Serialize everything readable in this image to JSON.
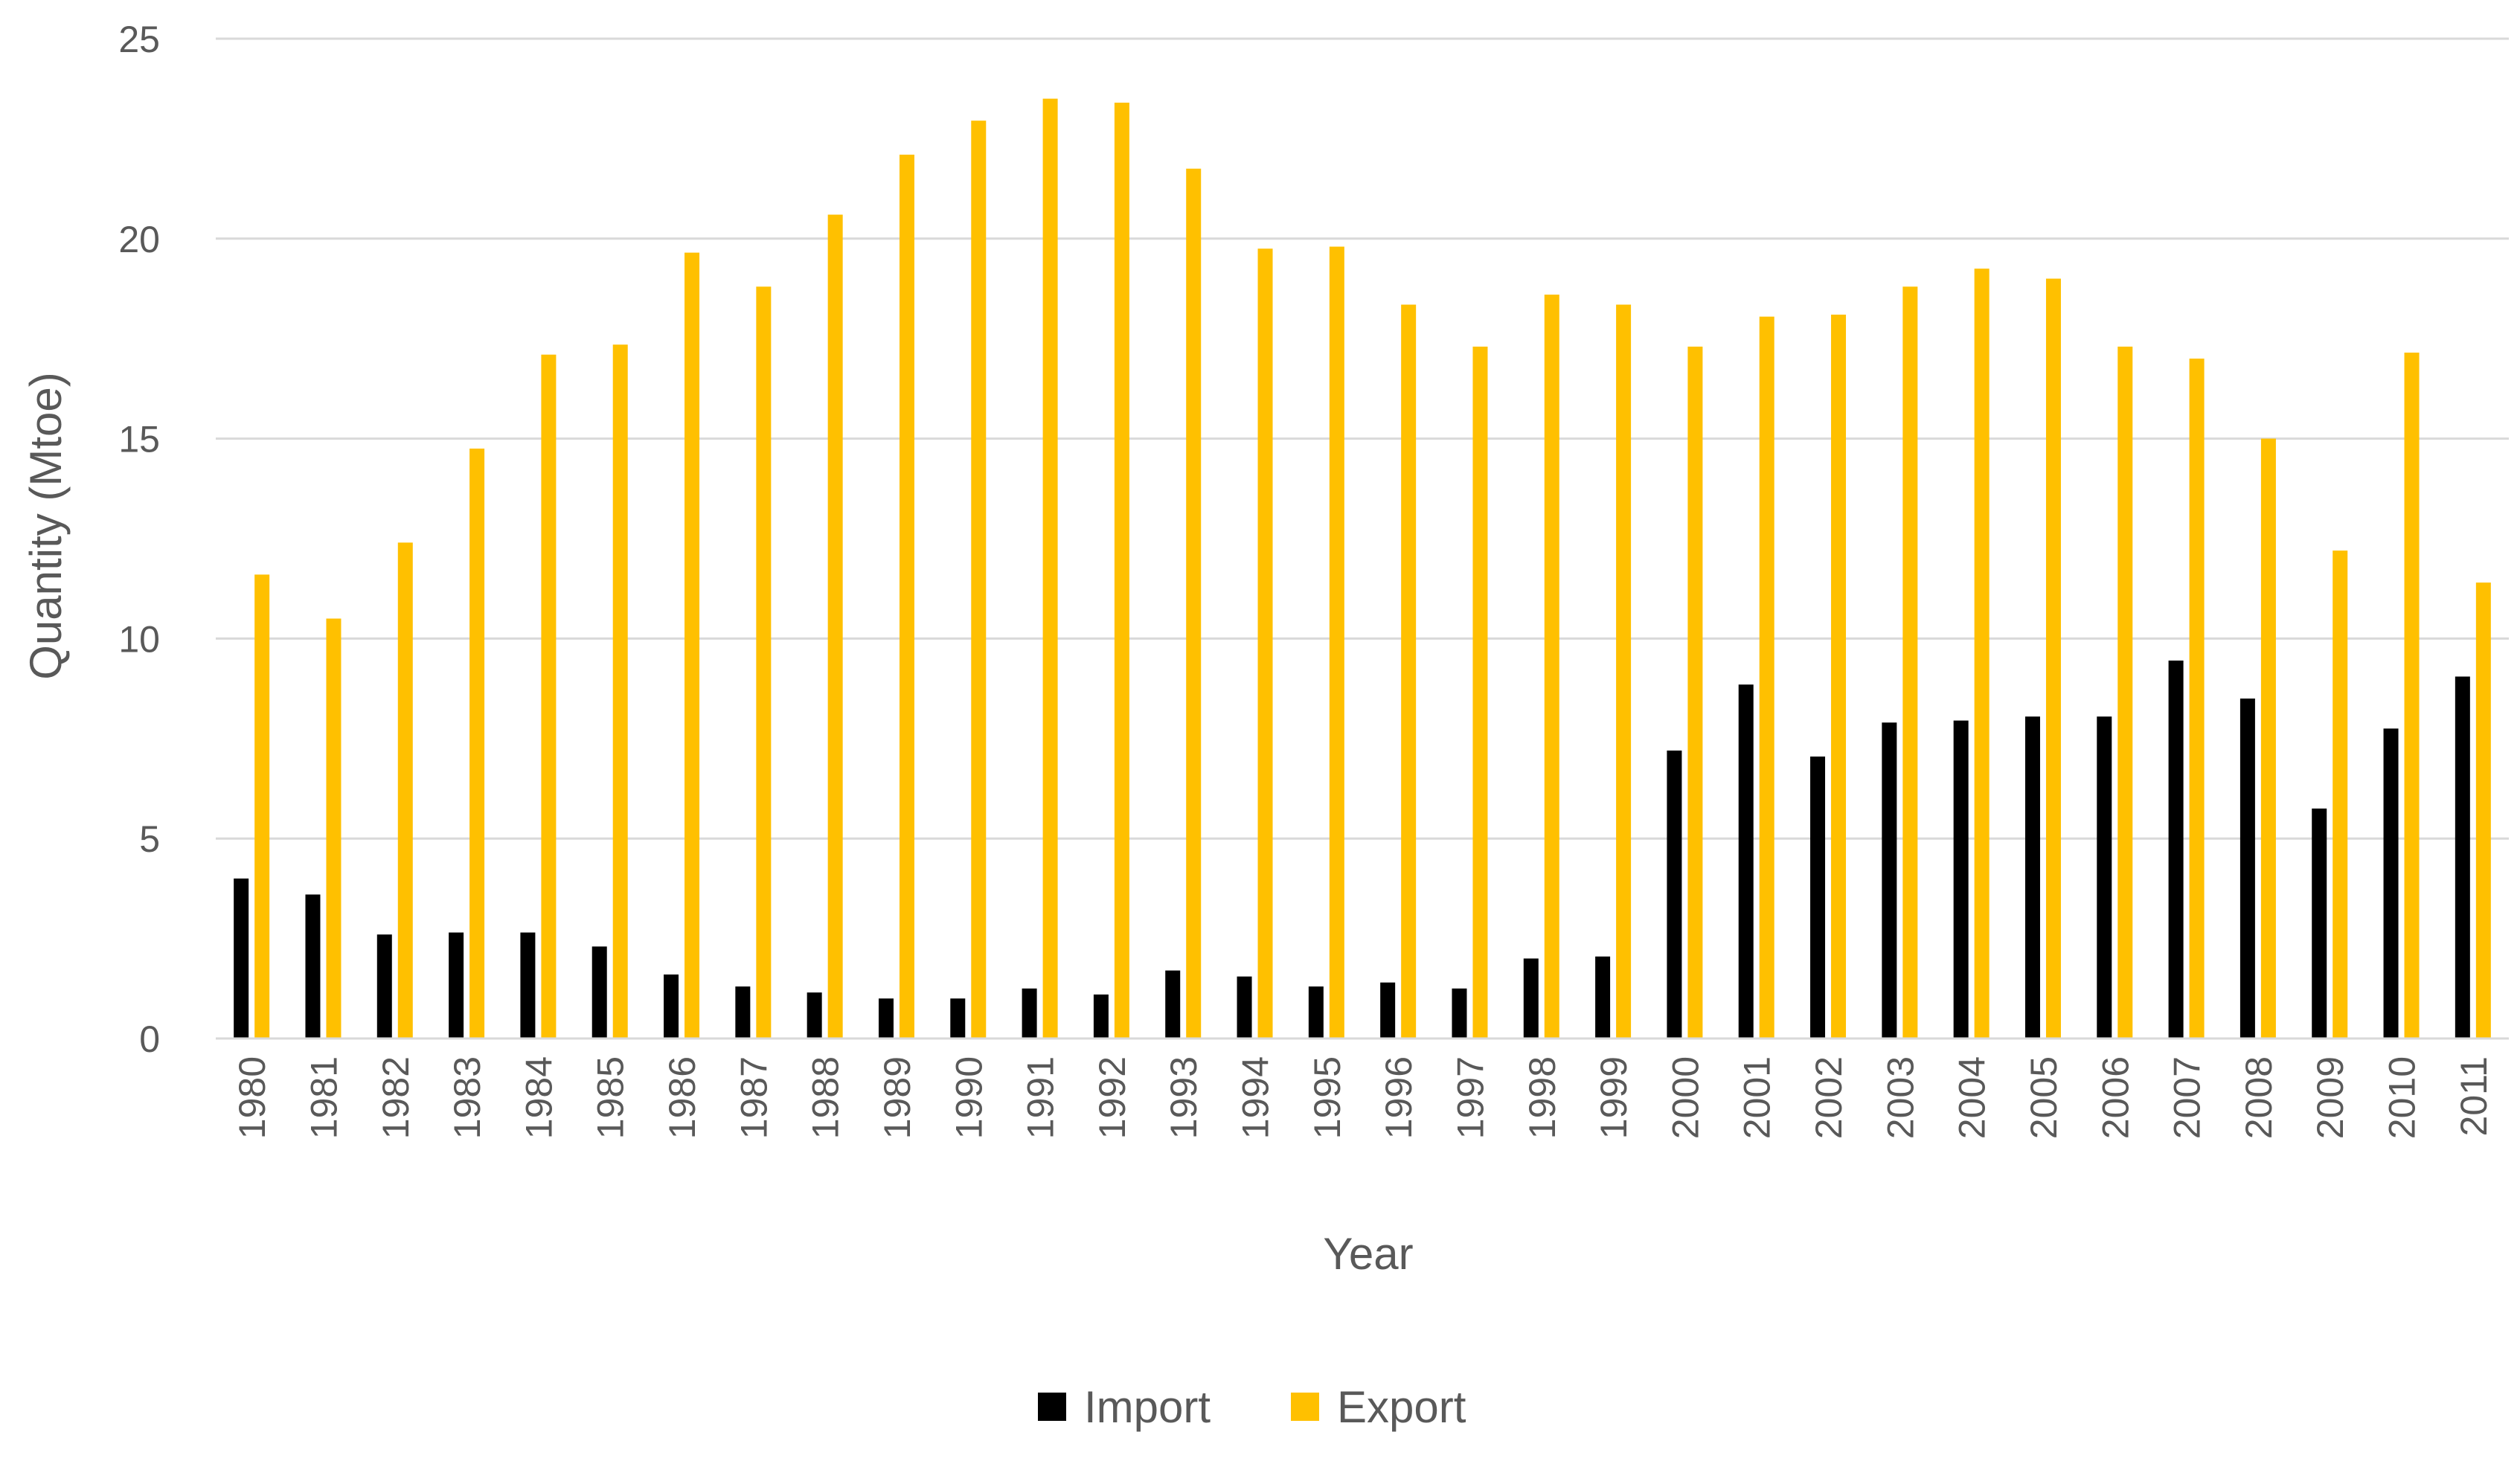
{
  "chart_data": {
    "type": "bar",
    "title": "",
    "xlabel": "Year",
    "ylabel": "Quantity (Mtoe)",
    "ylim": [
      0,
      25
    ],
    "yticks": [
      "0",
      "5",
      "10",
      "15",
      "20",
      "25"
    ],
    "grid": true,
    "legend_position": "bottom",
    "categories": [
      "1980",
      "1981",
      "1982",
      "1983",
      "1984",
      "1985",
      "1986",
      "1987",
      "1988",
      "1989",
      "1990",
      "1991",
      "1992",
      "1993",
      "1994",
      "1995",
      "1996",
      "1997",
      "1998",
      "1999",
      "2000",
      "2001",
      "2002",
      "2003",
      "2004",
      "2005",
      "2006",
      "2007",
      "2008",
      "2009",
      "2010",
      "2011"
    ],
    "series": [
      {
        "name": "Import",
        "color": "#000000",
        "values": [
          4.0,
          3.6,
          2.6,
          2.65,
          2.65,
          2.3,
          1.6,
          1.3,
          1.15,
          1.0,
          1.0,
          1.25,
          1.1,
          1.7,
          1.55,
          1.3,
          1.4,
          1.25,
          2.0,
          2.05,
          7.2,
          8.85,
          7.05,
          7.9,
          7.95,
          8.05,
          8.05,
          9.45,
          8.5,
          5.75,
          7.75,
          9.05
        ]
      },
      {
        "name": "Export",
        "color": "#FFC000",
        "values": [
          11.6,
          10.5,
          12.4,
          14.75,
          17.1,
          17.35,
          19.65,
          18.8,
          20.6,
          22.1,
          22.95,
          23.5,
          23.4,
          21.75,
          19.75,
          19.8,
          18.35,
          17.3,
          18.6,
          18.35,
          17.3,
          18.05,
          18.1,
          18.8,
          19.25,
          19.0,
          17.3,
          17.0,
          15.0,
          12.2,
          17.15,
          11.4
        ]
      }
    ]
  }
}
